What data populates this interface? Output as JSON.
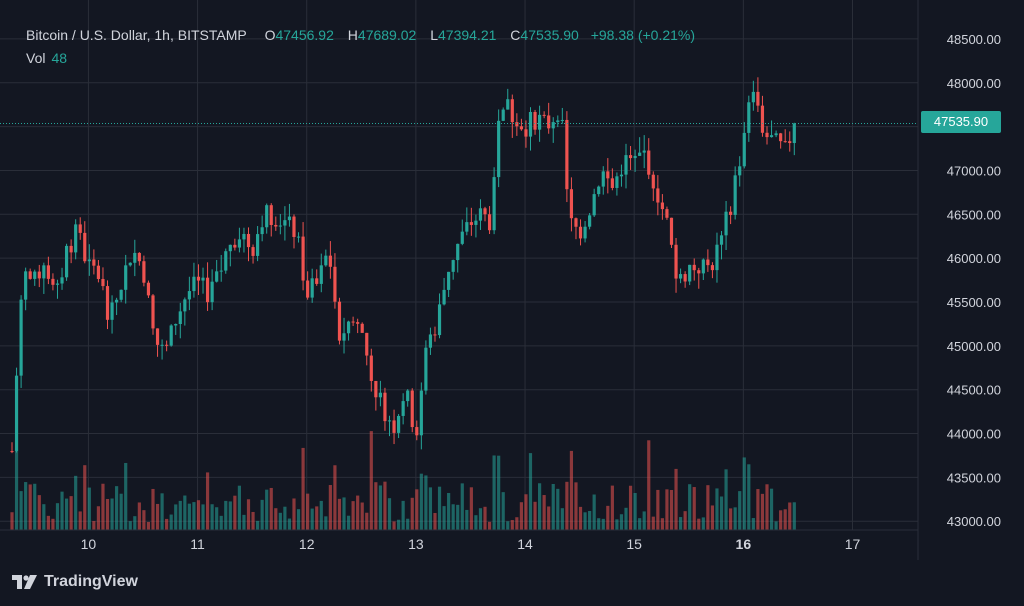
{
  "header": {
    "symbol": "Bitcoin / U.S. Dollar, 1h, BITSTAMP",
    "o_label": "O",
    "o_value": "47456.92",
    "h_label": "H",
    "h_value": "47689.02",
    "l_label": "L",
    "l_value": "47394.21",
    "c_label": "C",
    "c_value": "47535.90",
    "change": "+98.38 (+0.21%)"
  },
  "volume": {
    "label": "Vol",
    "value": "48"
  },
  "last_price_label": "47535.90",
  "branding": {
    "name": "TradingView",
    "icon": "tradingview-logo-icon"
  },
  "colors": {
    "up": "#26a69a",
    "down": "#ef5350",
    "background": "#131722",
    "grid": "#2a2e39",
    "text": "#d1d4dc"
  },
  "chart_data": {
    "type": "candlestick",
    "ylim": [
      42900,
      48750
    ],
    "y_ticks": [
      "48500.00",
      "48000.00",
      "47500.00",
      "47000.00",
      "46500.00",
      "46000.00",
      "45500.00",
      "45000.00",
      "44500.00",
      "44000.00",
      "43500.00",
      "43000.00"
    ],
    "y_tick_values": [
      48500,
      48000,
      47500,
      47000,
      46500,
      46000,
      45500,
      45000,
      44500,
      44000,
      43500,
      43000
    ],
    "x_ticks": [
      "10",
      "11",
      "12",
      "13",
      "14",
      "15",
      "16",
      "17"
    ],
    "x_tick_positions": [
      10,
      11,
      12,
      13,
      14,
      15,
      16,
      17
    ],
    "xlim": [
      9.3,
      17.6
    ],
    "last_price": 47535.9,
    "grid": true,
    "anchor_closes": [
      [
        9.3,
        43800
      ],
      [
        9.4,
        45900
      ],
      [
        9.5,
        45700
      ],
      [
        9.6,
        46000
      ],
      [
        9.7,
        45500
      ],
      [
        9.8,
        46100
      ],
      [
        9.9,
        46300
      ],
      [
        10.0,
        45900
      ],
      [
        10.1,
        45800
      ],
      [
        10.2,
        45300
      ],
      [
        10.3,
        45700
      ],
      [
        10.4,
        46100
      ],
      [
        10.5,
        45900
      ],
      [
        10.6,
        45100
      ],
      [
        10.7,
        44900
      ],
      [
        10.8,
        45300
      ],
      [
        10.9,
        45600
      ],
      [
        11.0,
        45700
      ],
      [
        11.1,
        45600
      ],
      [
        11.2,
        45800
      ],
      [
        11.3,
        46200
      ],
      [
        11.4,
        46300
      ],
      [
        11.5,
        46100
      ],
      [
        11.6,
        46500
      ],
      [
        11.7,
        46500
      ],
      [
        11.8,
        46400
      ],
      [
        11.9,
        46300
      ],
      [
        12.0,
        45600
      ],
      [
        12.1,
        45700
      ],
      [
        12.2,
        46100
      ],
      [
        12.3,
        45100
      ],
      [
        12.4,
        45300
      ],
      [
        12.5,
        45200
      ],
      [
        12.6,
        44600
      ],
      [
        12.7,
        44300
      ],
      [
        12.8,
        44100
      ],
      [
        12.9,
        44500
      ],
      [
        13.0,
        44000
      ],
      [
        13.1,
        45000
      ],
      [
        13.2,
        45300
      ],
      [
        13.3,
        45900
      ],
      [
        13.4,
        46200
      ],
      [
        13.5,
        46400
      ],
      [
        13.6,
        46500
      ],
      [
        13.7,
        46400
      ],
      [
        13.75,
        47600
      ],
      [
        13.8,
        47800
      ],
      [
        13.9,
        47600
      ],
      [
        14.0,
        47500
      ],
      [
        14.1,
        47600
      ],
      [
        14.2,
        47500
      ],
      [
        14.3,
        47700
      ],
      [
        14.35,
        47400
      ],
      [
        14.4,
        46400
      ],
      [
        14.5,
        46300
      ],
      [
        14.6,
        46600
      ],
      [
        14.7,
        47000
      ],
      [
        14.8,
        46800
      ],
      [
        14.9,
        47100
      ],
      [
        15.0,
        47100
      ],
      [
        15.1,
        47200
      ],
      [
        15.2,
        46800
      ],
      [
        15.3,
        46400
      ],
      [
        15.4,
        45700
      ],
      [
        15.5,
        45900
      ],
      [
        15.6,
        45900
      ],
      [
        15.7,
        45900
      ],
      [
        15.8,
        46200
      ],
      [
        15.9,
        46700
      ],
      [
        16.0,
        47300
      ],
      [
        16.05,
        47700
      ],
      [
        16.1,
        48000
      ],
      [
        16.15,
        47500
      ],
      [
        16.2,
        47400
      ],
      [
        16.3,
        47300
      ],
      [
        16.4,
        47200
      ],
      [
        16.45,
        47535
      ]
    ]
  }
}
